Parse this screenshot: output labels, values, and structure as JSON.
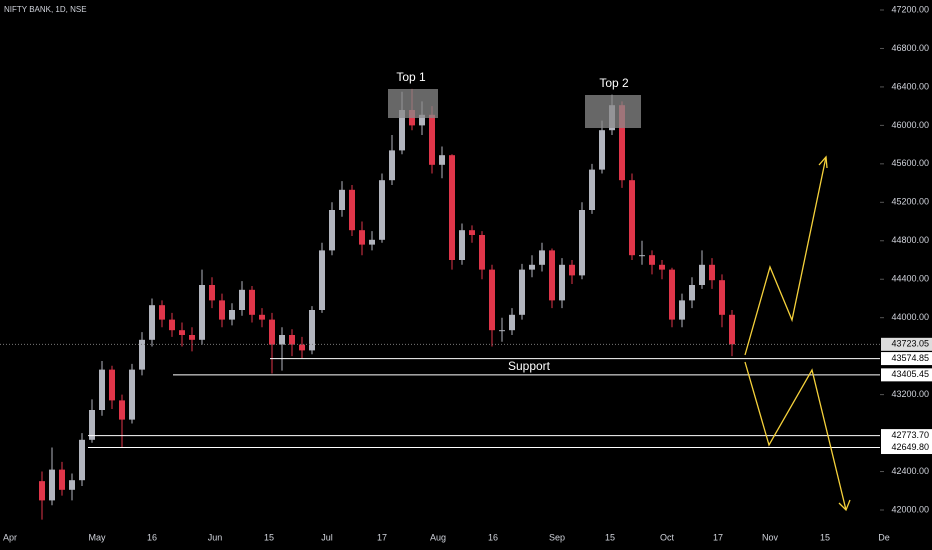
{
  "chart_data": {
    "type": "candlestick",
    "title": "NIFTY BANK, 1D, NSE",
    "up_color": "#b2b5be",
    "down_color": "#e0364a",
    "candles": [
      [
        42300,
        42400,
        41900,
        42100
      ],
      [
        42100,
        42650,
        42050,
        42420
      ],
      [
        42420,
        42500,
        42150,
        42210
      ],
      [
        42210,
        42380,
        42100,
        42310
      ],
      [
        42310,
        42800,
        42250,
        42730
      ],
      [
        42730,
        43150,
        42700,
        43040
      ],
      [
        43040,
        43550,
        42980,
        43460
      ],
      [
        43460,
        43500,
        43050,
        43140
      ],
      [
        43140,
        43200,
        42650,
        42940
      ],
      [
        42940,
        43520,
        42900,
        43460
      ],
      [
        43460,
        43850,
        43400,
        43770
      ],
      [
        43770,
        44200,
        43700,
        44130
      ],
      [
        44130,
        44180,
        43900,
        43980
      ],
      [
        43980,
        44050,
        43800,
        43870
      ],
      [
        43870,
        43950,
        43700,
        43820
      ],
      [
        43820,
        43900,
        43650,
        43770
      ],
      [
        43770,
        44500,
        43720,
        44340
      ],
      [
        44340,
        44420,
        44100,
        44180
      ],
      [
        44180,
        44250,
        43900,
        43980
      ],
      [
        43980,
        44150,
        43920,
        44080
      ],
      [
        44080,
        44380,
        44020,
        44290
      ],
      [
        44290,
        44330,
        43950,
        44030
      ],
      [
        44030,
        44100,
        43900,
        43980
      ],
      [
        43980,
        44050,
        43420,
        43720
      ],
      [
        43720,
        43900,
        43450,
        43820
      ],
      [
        43820,
        43880,
        43600,
        43720
      ],
      [
        43720,
        43800,
        43580,
        43660
      ],
      [
        43660,
        44120,
        43620,
        44080
      ],
      [
        44080,
        44780,
        44050,
        44700
      ],
      [
        44700,
        45200,
        44650,
        45120
      ],
      [
        45120,
        45420,
        45050,
        45330
      ],
      [
        45330,
        45380,
        44850,
        44910
      ],
      [
        44910,
        45000,
        44650,
        44760
      ],
      [
        44760,
        44900,
        44700,
        44810
      ],
      [
        44810,
        45500,
        44780,
        45430
      ],
      [
        45430,
        45900,
        45380,
        45740
      ],
      [
        45740,
        46350,
        45700,
        46160
      ],
      [
        46160,
        46380,
        45950,
        46000
      ],
      [
        46000,
        46250,
        45900,
        46110
      ],
      [
        46110,
        46200,
        45500,
        45590
      ],
      [
        45590,
        45780,
        45450,
        45690
      ],
      [
        45690,
        45700,
        44500,
        44600
      ],
      [
        44600,
        44980,
        44550,
        44910
      ],
      [
        44910,
        44960,
        44780,
        44860
      ],
      [
        44860,
        44900,
        44400,
        44500
      ],
      [
        44500,
        44550,
        43700,
        43870
      ],
      [
        43870,
        44000,
        43750,
        43870
      ],
      [
        43870,
        44100,
        43820,
        44030
      ],
      [
        44030,
        44560,
        43980,
        44500
      ],
      [
        44500,
        44650,
        44420,
        44550
      ],
      [
        44550,
        44780,
        44480,
        44700
      ],
      [
        44700,
        44720,
        44100,
        44180
      ],
      [
        44180,
        44620,
        44100,
        44550
      ],
      [
        44550,
        44600,
        44350,
        44440
      ],
      [
        44440,
        45200,
        44400,
        45120
      ],
      [
        45120,
        45600,
        45080,
        45540
      ],
      [
        45540,
        46050,
        45500,
        45950
      ],
      [
        45950,
        46320,
        45900,
        46210
      ],
      [
        46210,
        46250,
        45350,
        45430
      ],
      [
        45430,
        45500,
        44600,
        44650
      ],
      [
        44650,
        44800,
        44550,
        44650
      ],
      [
        44650,
        44700,
        44450,
        44550
      ],
      [
        44550,
        44600,
        44400,
        44500
      ],
      [
        44500,
        44520,
        43900,
        43980
      ],
      [
        43980,
        44250,
        43900,
        44180
      ],
      [
        44180,
        44420,
        44100,
        44340
      ],
      [
        44340,
        44700,
        44300,
        44550
      ],
      [
        44550,
        44620,
        44300,
        44390
      ],
      [
        44390,
        44450,
        43900,
        44030
      ],
      [
        44030,
        44080,
        43600,
        43723.05
      ]
    ],
    "x_labels": [
      "Apr",
      "May",
      "16",
      "Jun",
      "15",
      "Jul",
      "17",
      "Aug",
      "16",
      "Sep",
      "15",
      "Oct",
      "17",
      "Nov",
      "15",
      "De"
    ],
    "ylim": [
      42000,
      47200
    ],
    "yticks": [
      {
        "value": 47200,
        "label": "47200.00"
      },
      {
        "value": 46800,
        "label": "46800.00"
      },
      {
        "value": 46400,
        "label": "46400.00"
      },
      {
        "value": 46000,
        "label": "46000.00"
      },
      {
        "value": 45600,
        "label": "45600.00"
      },
      {
        "value": 45200,
        "label": "45200.00"
      },
      {
        "value": 44800,
        "label": "44800.00"
      },
      {
        "value": 44400,
        "label": "44400.00"
      },
      {
        "value": 44000,
        "label": "44000.00"
      },
      {
        "value": 43200,
        "label": "43200.00"
      },
      {
        "value": 42400,
        "label": "42400.00"
      },
      {
        "value": 42000,
        "label": "42000.00"
      }
    ],
    "levels": [
      43723.05,
      43574.85,
      43405.45,
      {
        "value": 42773.7,
        "label": "42773.70"
      },
      {
        "value": 42649.8,
        "label": "42649.80"
      }
    ],
    "annotations": [
      "Top 1",
      "Top 2",
      "Support"
    ]
  }
}
